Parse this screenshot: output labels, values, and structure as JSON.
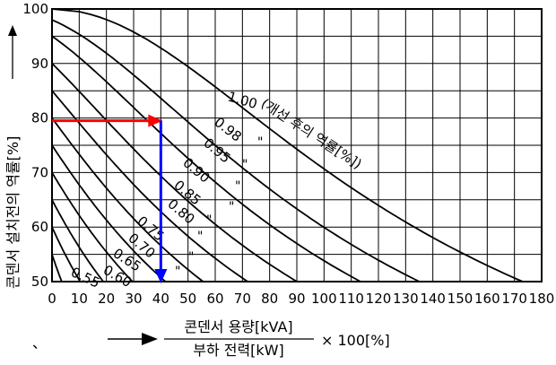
{
  "chart_data": {
    "type": "line",
    "xlim": [
      0,
      180
    ],
    "ylim": [
      50,
      100
    ],
    "x_ticks": [
      "0",
      "10",
      "20",
      "30",
      "40",
      "50",
      "60",
      "70",
      "80",
      "90",
      "100",
      "110",
      "120",
      "130",
      "140",
      "150",
      "160",
      "170",
      "180"
    ],
    "y_ticks": [
      "50",
      "60",
      "70",
      "80",
      "90",
      "100"
    ],
    "grid": true,
    "ylabel": "콘덴서 설치전의 역률[%]",
    "xlabel_numerator": "콘덴서 용량[kVA]",
    "xlabel_denominator": "부하 전력[kW]",
    "xlabel_suffix": "× 100[%]",
    "curve_label_note": "(개선 후의 역률[%])",
    "ditto_mark": "\"",
    "stray_mark": "、",
    "series": [
      {
        "name": "1.00",
        "x_at_50": 173
      },
      {
        "name": "0.98",
        "x_at_50": 153
      },
      {
        "name": "0.95",
        "x_at_50": 140
      },
      {
        "name": "0.90",
        "x_at_50": 125
      },
      {
        "name": "0.85",
        "x_at_50": 112
      },
      {
        "name": "0.80",
        "x_at_50": 98
      },
      {
        "name": "0.75",
        "x_at_50": 85
      },
      {
        "name": "0.70",
        "x_at_50": 72
      },
      {
        "name": "0.65",
        "x_at_50": 58
      },
      {
        "name": "0.60",
        "x_at_50": 45
      },
      {
        "name": "0.55",
        "x_at_50": 29
      }
    ],
    "annotations": {
      "horizontal_arrow": {
        "color": "#ff0000",
        "from": [
          0,
          79.5
        ],
        "to": [
          40,
          79.5
        ]
      },
      "vertical_arrow": {
        "color": "#0000ff",
        "from": [
          40,
          79.5
        ],
        "to": [
          40,
          50
        ]
      }
    }
  }
}
